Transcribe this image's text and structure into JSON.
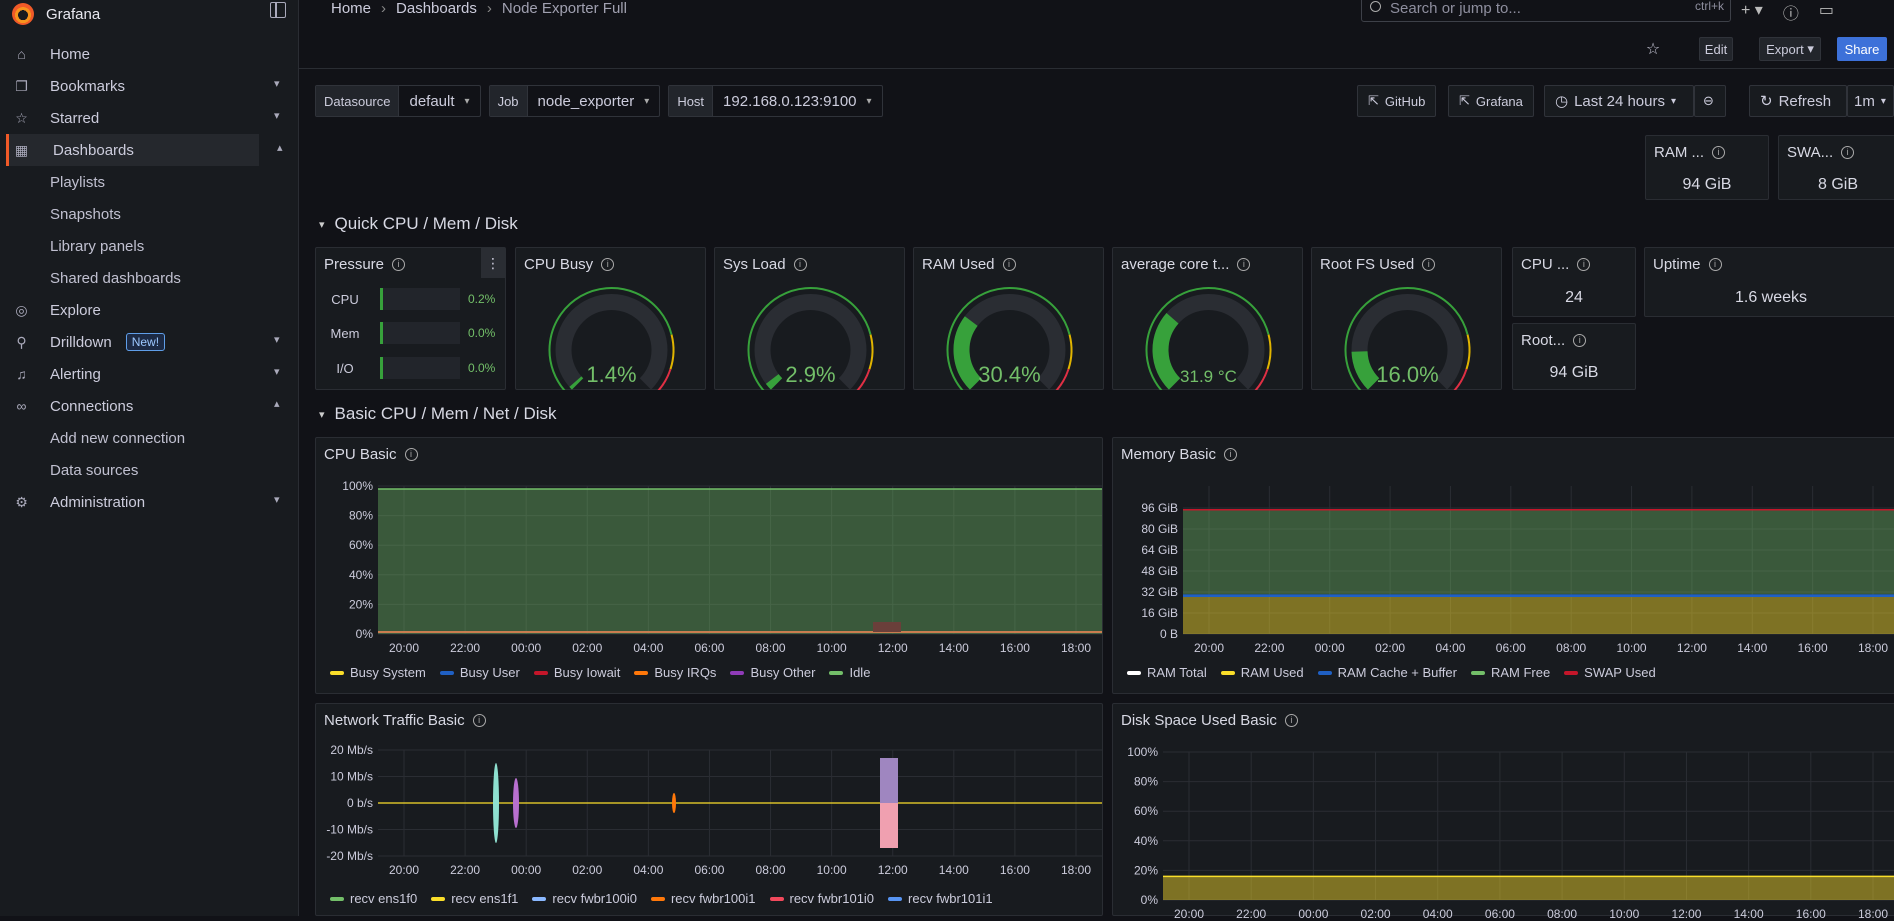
{
  "app": {
    "brand": "Grafana"
  },
  "breadcrumb": [
    "Home",
    "Dashboards",
    "Node Exporter Full"
  ],
  "search": {
    "placeholder": "Search or jump to...",
    "shortcut": "ctrl+k"
  },
  "toolbar": {
    "edit": "Edit",
    "export": "Export",
    "share": "Share"
  },
  "nav": {
    "items": [
      {
        "label": "Home",
        "icon": "home-icon"
      },
      {
        "label": "Bookmarks",
        "icon": "bookmark-icon"
      },
      {
        "label": "Starred",
        "icon": "star-icon"
      },
      {
        "label": "Dashboards",
        "icon": "apps-icon"
      },
      {
        "label": "Explore",
        "icon": "compass-icon"
      },
      {
        "label": "Drilldown",
        "icon": "drilldown-icon",
        "badge": "New!"
      },
      {
        "label": "Alerting",
        "icon": "bell-icon"
      },
      {
        "label": "Connections",
        "icon": "link-icon"
      },
      {
        "label": "Administration",
        "icon": "cog-icon"
      }
    ],
    "dashboard_sub": [
      "Playlists",
      "Snapshots",
      "Library panels",
      "Shared dashboards"
    ],
    "connection_sub": [
      "Add new connection",
      "Data sources"
    ]
  },
  "variables": {
    "datasource": {
      "label": "Datasource",
      "value": "default"
    },
    "job": {
      "label": "Job",
      "value": "node_exporter"
    },
    "host": {
      "label": "Host",
      "value": "192.168.0.123:9100"
    }
  },
  "links": {
    "github": "GitHub",
    "grafana": "Grafana"
  },
  "time": {
    "range": "Last 24 hours",
    "refresh": "Refresh",
    "interval": "1m"
  },
  "stats_top": {
    "ram": {
      "title": "RAM ...",
      "value": "94 GiB"
    },
    "swap": {
      "title": "SWA...",
      "value": "8 GiB"
    }
  },
  "sections": {
    "quick": "Quick CPU / Mem / Disk",
    "basic": "Basic CPU / Mem / Net / Disk"
  },
  "pressure": {
    "title": "Pressure",
    "rows": [
      {
        "label": "CPU",
        "value": "0.2%",
        "fraction": 0.002
      },
      {
        "label": "Mem",
        "value": "0.0%",
        "fraction": 0.0
      },
      {
        "label": "I/O",
        "value": "0.0%",
        "fraction": 0.0
      }
    ]
  },
  "gauges": [
    {
      "title": "CPU Busy",
      "value": "1.4%",
      "fraction": 0.014
    },
    {
      "title": "Sys Load",
      "value": "2.9%",
      "fraction": 0.029
    },
    {
      "title": "RAM Used",
      "value": "30.4%",
      "fraction": 0.304
    },
    {
      "title": "average core t...",
      "value": "31.9 °C",
      "fraction": 0.32
    },
    {
      "title": "Root FS Used",
      "value": "16.0%",
      "fraction": 0.16
    }
  ],
  "stats": {
    "cpu_cores": {
      "title": "CPU ...",
      "value": "24"
    },
    "root": {
      "title": "Root...",
      "value": "94 GiB"
    },
    "uptime": {
      "title": "Uptime",
      "value": "1.6 weeks"
    }
  },
  "panels": {
    "cpu_basic": {
      "title": "CPU Basic"
    },
    "memory_basic": {
      "title": "Memory Basic"
    },
    "network_basic": {
      "title": "Network Traffic Basic"
    },
    "disk_basic": {
      "title": "Disk Space Used Basic"
    }
  },
  "chart_data": [
    {
      "type": "area",
      "title": "CPU Basic",
      "x": [
        "20:00",
        "22:00",
        "00:00",
        "02:00",
        "04:00",
        "06:00",
        "08:00",
        "10:00",
        "12:00",
        "14:00",
        "16:00",
        "18:00"
      ],
      "yticks": [
        "100%",
        "80%",
        "60%",
        "40%",
        "20%",
        "0%"
      ],
      "ylim": [
        0,
        100
      ],
      "series": [
        {
          "name": "Busy System",
          "color": "#fade2a"
        },
        {
          "name": "Busy User",
          "color": "#1f60c4"
        },
        {
          "name": "Busy Iowait",
          "color": "#c4162a"
        },
        {
          "name": "Busy IRQs",
          "color": "#ff780a"
        },
        {
          "name": "Busy Other",
          "color": "#8f3bb8"
        },
        {
          "name": "Idle",
          "color": "#73bf69",
          "values": [
            98,
            98,
            98,
            98,
            98,
            98,
            98,
            98,
            98,
            98,
            98,
            98
          ]
        }
      ]
    },
    {
      "type": "area",
      "title": "Memory Basic",
      "x": [
        "20:00",
        "22:00",
        "00:00",
        "02:00",
        "04:00",
        "06:00",
        "08:00",
        "10:00",
        "12:00",
        "14:00",
        "16:00",
        "18:00"
      ],
      "yticks": [
        "96 GiB",
        "80 GiB",
        "64 GiB",
        "48 GiB",
        "32 GiB",
        "16 GiB",
        "0 B"
      ],
      "ylim": [
        0,
        112
      ],
      "series": [
        {
          "name": "RAM Total",
          "color": "#ffffff",
          "values": [
            94,
            94,
            94,
            94,
            94,
            94,
            94,
            94,
            94,
            94,
            94,
            94
          ]
        },
        {
          "name": "RAM Used",
          "color": "#fade2a",
          "values": [
            28,
            26,
            28,
            28,
            28,
            28,
            28,
            28,
            28,
            28,
            28,
            28
          ]
        },
        {
          "name": "RAM Cache + Buffer",
          "color": "#1f60c4",
          "values": [
            2,
            2,
            2,
            2,
            2,
            2,
            2,
            2,
            2,
            2,
            2,
            2
          ]
        },
        {
          "name": "RAM Free",
          "color": "#73bf69",
          "values": [
            64,
            66,
            64,
            64,
            64,
            64,
            64,
            64,
            64,
            64,
            64,
            64
          ]
        },
        {
          "name": "SWAP Used",
          "color": "#c4162a"
        }
      ]
    },
    {
      "type": "line",
      "title": "Network Traffic Basic",
      "x": [
        "20:00",
        "22:00",
        "00:00",
        "02:00",
        "04:00",
        "06:00",
        "08:00",
        "10:00",
        "12:00",
        "14:00",
        "16:00",
        "18:00"
      ],
      "yticks": [
        "20 Mb/s",
        "10 Mb/s",
        "0 b/s",
        "-10 Mb/s",
        "-20 Mb/s"
      ],
      "ylim": [
        -25,
        25
      ],
      "series": [
        {
          "name": "recv ens1f0",
          "color": "#73bf69"
        },
        {
          "name": "recv ens1f1",
          "color": "#fade2a"
        },
        {
          "name": "recv fwbr100i0",
          "color": "#8ab8ff"
        },
        {
          "name": "recv fwbr100i1",
          "color": "#ff780a"
        },
        {
          "name": "recv fwbr101i0",
          "color": "#f2495c"
        },
        {
          "name": "recv fwbr101i1",
          "color": "#5794f2"
        }
      ]
    },
    {
      "type": "area",
      "title": "Disk Space Used Basic",
      "x": [
        "20:00",
        "22:00",
        "00:00",
        "02:00",
        "04:00",
        "06:00",
        "08:00",
        "10:00",
        "12:00",
        "14:00",
        "16:00",
        "18:00"
      ],
      "yticks": [
        "100%",
        "80%",
        "60%",
        "40%",
        "20%",
        "0%"
      ],
      "ylim": [
        0,
        100
      ],
      "series": [
        {
          "values": [
            16,
            16,
            16,
            16,
            16,
            16,
            16,
            16,
            16,
            16,
            16,
            16
          ],
          "color": "#fade2a"
        }
      ]
    }
  ]
}
